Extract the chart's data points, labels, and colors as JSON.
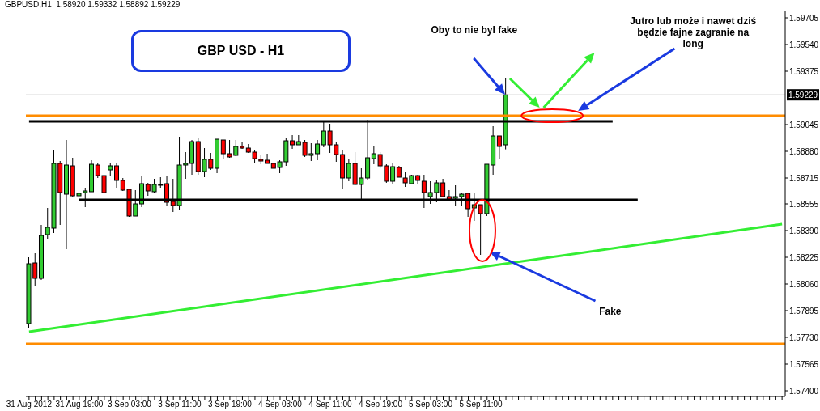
{
  "chart_data": {
    "type": "candlestick",
    "title": "GBPUSD,H1  1.58920 1.59332 1.58892 1.59229",
    "annotations": [
      "GBP USD - H1",
      "Oby to nie byl fake",
      "Jutro lub może i nawet dziś będzie fajne zagranie na long",
      "Fake"
    ],
    "categories": [
      "31 Aug 2012",
      null,
      null,
      null,
      null,
      null,
      null,
      null,
      "31 Aug 19:00",
      null,
      null,
      null,
      null,
      null,
      null,
      null,
      "3 Sep 03:00",
      null,
      null,
      null,
      null,
      null,
      null,
      null,
      "3 Sep 11:00",
      null,
      null,
      null,
      null,
      null,
      null,
      null,
      "3 Sep 19:00",
      null,
      null,
      null,
      null,
      null,
      null,
      null,
      "4 Sep 03:00",
      null,
      null,
      null,
      null,
      null,
      null,
      null,
      "4 Sep 11:00",
      null,
      null,
      null,
      null,
      null,
      null,
      null,
      "4 Sep 19:00",
      null,
      null,
      null,
      null,
      null,
      null,
      null,
      "5 Sep 03:00",
      null,
      null,
      null,
      null,
      null,
      null,
      null,
      "5 Sep 11:00",
      null,
      null,
      null,
      null,
      null,
      null,
      null,
      null,
      null,
      null,
      null,
      null,
      null,
      null,
      null,
      null,
      null,
      null,
      null,
      null,
      null,
      null,
      null,
      null,
      null,
      null,
      null,
      null,
      null,
      null,
      null,
      null,
      null,
      null,
      null,
      null,
      null,
      null,
      null,
      null,
      null,
      null,
      null,
      null,
      null,
      null,
      null,
      null
    ],
    "ohlc": [
      [
        1.57815,
        1.58225,
        1.5779,
        1.58185
      ],
      [
        1.5819,
        1.5825,
        1.5805,
        1.58095
      ],
      [
        1.58095,
        1.58425,
        1.58085,
        1.5836
      ],
      [
        1.58365,
        1.5853,
        1.58335,
        1.5841
      ],
      [
        1.58405,
        1.58885,
        1.58375,
        1.58805
      ],
      [
        1.58805,
        1.5882,
        1.58425,
        1.58625
      ],
      [
        1.58615,
        1.5895,
        1.58275,
        1.58795
      ],
      [
        1.5879,
        1.5884,
        1.586,
        1.58605
      ],
      [
        1.58605,
        1.5866,
        1.58525,
        1.5862
      ],
      [
        1.58625,
        1.58655,
        1.58535,
        1.58635
      ],
      [
        1.5863,
        1.58825,
        1.5863,
        1.588
      ],
      [
        1.58795,
        1.58805,
        1.58715,
        1.5873
      ],
      [
        1.5873,
        1.58765,
        1.5861,
        1.58625
      ],
      [
        1.58765,
        1.58805,
        1.5873,
        1.5879
      ],
      [
        1.5879,
        1.58805,
        1.58655,
        1.587
      ],
      [
        1.587,
        1.58715,
        1.58635,
        1.5864
      ],
      [
        1.58645,
        1.58645,
        1.58475,
        1.5848
      ],
      [
        1.5848,
        1.5864,
        1.5848,
        1.58555
      ],
      [
        1.58555,
        1.58725,
        1.58535,
        1.5868
      ],
      [
        1.58675,
        1.58685,
        1.58605,
        1.58635
      ],
      [
        1.5863,
        1.5871,
        1.5862,
        1.58675
      ],
      [
        1.58675,
        1.5872,
        1.58655,
        1.58675
      ],
      [
        1.5868,
        1.58725,
        1.5854,
        1.58565
      ],
      [
        1.5857,
        1.5871,
        1.58505,
        1.58545
      ],
      [
        1.58545,
        1.5897,
        1.5852,
        1.58795
      ],
      [
        1.58795,
        1.58875,
        1.5871,
        1.58805
      ],
      [
        1.58805,
        1.5895,
        1.58735,
        1.5894
      ],
      [
        1.5894,
        1.58965,
        1.58735,
        1.58755
      ],
      [
        1.58755,
        1.589,
        1.5872,
        1.5883
      ],
      [
        1.5883,
        1.5887,
        1.58765,
        1.58775
      ],
      [
        1.58775,
        1.58955,
        1.58745,
        1.58955
      ],
      [
        1.5895,
        1.5895,
        1.58835,
        1.58865
      ],
      [
        1.58865,
        1.5895,
        1.5884,
        1.58845
      ],
      [
        1.58855,
        1.5895,
        1.5885,
        1.5891
      ],
      [
        1.5891,
        1.5894,
        1.58895,
        1.589
      ],
      [
        1.589,
        1.58925,
        1.5887,
        1.58875
      ],
      [
        1.58875,
        1.5889,
        1.5881,
        1.58835
      ],
      [
        1.5883,
        1.5886,
        1.588,
        1.5882
      ],
      [
        1.58825,
        1.58865,
        1.58805,
        1.58805
      ],
      [
        1.58805,
        1.5881,
        1.58775,
        1.58775
      ],
      [
        1.5878,
        1.58825,
        1.58745,
        1.58815
      ],
      [
        1.58815,
        1.58965,
        1.5879,
        1.58945
      ],
      [
        1.58945,
        1.5898,
        1.58895,
        1.5892
      ],
      [
        1.5892,
        1.5898,
        1.5892,
        1.5894
      ],
      [
        1.58935,
        1.5895,
        1.58845,
        1.58855
      ],
      [
        1.58855,
        1.5893,
        1.5882,
        1.58865
      ],
      [
        1.58865,
        1.5895,
        1.58825,
        1.58925
      ],
      [
        1.5892,
        1.5907,
        1.58905,
        1.59005
      ],
      [
        1.59005,
        1.5905,
        1.5887,
        1.5892
      ],
      [
        1.5892,
        1.58935,
        1.58815,
        1.5886
      ],
      [
        1.5886,
        1.5889,
        1.58645,
        1.58715
      ],
      [
        1.58715,
        1.58835,
        1.58695,
        1.58805
      ],
      [
        1.58805,
        1.58875,
        1.5867,
        1.58675
      ],
      [
        1.58675,
        1.58775,
        1.5857,
        1.58715
      ],
      [
        1.58715,
        1.59075,
        1.587,
        1.5884
      ],
      [
        1.58835,
        1.5891,
        1.588,
        1.58865
      ],
      [
        1.5886,
        1.58875,
        1.58775,
        1.5879
      ],
      [
        1.5879,
        1.588,
        1.58685,
        1.58695
      ],
      [
        1.58695,
        1.5881,
        1.58675,
        1.58785
      ],
      [
        1.5878,
        1.5879,
        1.5872,
        1.5872
      ],
      [
        1.58715,
        1.5875,
        1.5866,
        1.58685
      ],
      [
        1.5868,
        1.58735,
        1.5868,
        1.5873
      ],
      [
        1.5873,
        1.58735,
        1.58675,
        1.587
      ],
      [
        1.58695,
        1.58735,
        1.5853,
        1.58625
      ],
      [
        1.586,
        1.58695,
        1.58555,
        1.58625
      ],
      [
        1.58625,
        1.58705,
        1.58565,
        1.58685
      ],
      [
        1.58685,
        1.5871,
        1.586,
        1.586
      ],
      [
        1.586,
        1.5864,
        1.58575,
        1.5858
      ],
      [
        1.5859,
        1.5867,
        1.58545,
        1.586
      ],
      [
        1.586,
        1.5862,
        1.58545,
        1.58615
      ],
      [
        1.5862,
        1.58625,
        1.58475,
        1.58525
      ],
      [
        1.5853,
        1.58625,
        1.5845,
        1.5855
      ],
      [
        1.5855,
        1.5855,
        1.5824,
        1.58495
      ],
      [
        1.58495,
        1.588,
        1.5848,
        1.588
      ],
      [
        1.58795,
        1.59035,
        1.58735,
        1.58975
      ],
      [
        1.58975,
        1.58975,
        1.5883,
        1.5891
      ],
      [
        1.5892,
        1.59332,
        1.58892,
        1.59229
      ],
      null,
      null,
      null,
      null,
      null,
      null,
      null,
      null,
      null,
      null,
      null,
      null,
      null,
      null,
      null,
      null,
      null,
      null,
      null,
      null,
      null,
      null,
      null,
      null,
      null,
      null,
      null,
      null,
      null,
      null,
      null,
      null,
      null,
      null,
      null,
      null,
      null,
      null,
      null,
      null,
      null,
      null,
      null,
      null
    ],
    "colors": [
      "#32cd32",
      "#ff0000",
      "#32cd32",
      "#32cd32",
      "#32cd32",
      "#ff0000",
      "#32cd32",
      "#ff0000",
      "#32cd32",
      "#32cd32",
      "#32cd32",
      "#ff0000",
      "#ff0000",
      "#32cd32",
      "#ff0000",
      "#ff0000",
      "#ff0000",
      "#32cd32",
      "#32cd32",
      "#ff0000",
      "#32cd32",
      "#32cd32",
      "#ff0000",
      "#ff0000",
      "#32cd32",
      "#32cd32",
      "#32cd32",
      "#ff0000",
      "#32cd32",
      "#ff0000",
      "#32cd32",
      "#ff0000",
      "#ff0000",
      "#32cd32",
      "#ff0000",
      "#ff0000",
      "#ff0000",
      "#ff0000",
      "#ff0000",
      "#ff0000",
      "#32cd32",
      "#32cd32",
      "#ff0000",
      "#32cd32",
      "#ff0000",
      "#32cd32",
      "#32cd32",
      "#32cd32",
      "#ff0000",
      "#ff0000",
      "#ff0000",
      "#32cd32",
      "#ff0000",
      "#32cd32",
      "#32cd32",
      "#32cd32",
      "#ff0000",
      "#ff0000",
      "#32cd32",
      "#ff0000",
      "#ff0000",
      "#32cd32",
      "#ff0000",
      "#ff0000",
      "#32cd32",
      "#32cd32",
      "#ff0000",
      "#ff0000",
      "#32cd32",
      "#32cd32",
      "#ff0000",
      "#32cd32",
      "#ff0000",
      "#32cd32",
      "#32cd32",
      "#ff0000",
      "#32cd32",
      null,
      null,
      null,
      null,
      null,
      null,
      null,
      null,
      null,
      null,
      null,
      null,
      null,
      null,
      null,
      null,
      null,
      null,
      null,
      null,
      null,
      null,
      null,
      null,
      null,
      null,
      null,
      null,
      null,
      null,
      null,
      null,
      null,
      null,
      null,
      null,
      null,
      null,
      null,
      null,
      null,
      null,
      null,
      null
    ],
    "series": [
      {
        "type": "line",
        "color": "#33ee33",
        "values": [
          1.57765,
          null,
          null,
          null,
          null,
          null,
          null,
          null,
          null,
          null,
          null,
          null,
          null,
          null,
          null,
          null,
          null,
          null,
          null,
          null,
          null,
          null,
          null,
          null,
          null,
          null,
          null,
          null,
          null,
          null,
          null,
          null,
          null,
          null,
          null,
          null,
          null,
          null,
          null,
          null,
          null,
          null,
          null,
          null,
          null,
          null,
          null,
          null,
          null,
          null,
          null,
          null,
          null,
          null,
          null,
          null,
          null,
          null,
          null,
          null,
          null,
          null,
          null,
          null,
          null,
          null,
          null,
          null,
          null,
          null,
          null,
          null,
          null,
          null,
          null,
          null,
          null,
          null,
          null,
          null,
          null,
          null,
          null,
          null,
          null,
          null,
          null,
          null,
          null,
          null,
          null,
          null,
          null,
          null,
          null,
          null,
          null,
          null,
          null,
          null,
          null,
          null,
          null,
          null,
          null,
          null,
          null,
          null,
          null,
          null,
          null,
          null,
          null,
          null,
          null,
          null,
          null,
          null,
          null,
          null,
          1.5843
        ]
      },
      {
        "type": "line",
        "color": "#000000",
        "values": [
          1.59065,
          null,
          null,
          null,
          null,
          null,
          null,
          null,
          null,
          null,
          null,
          null,
          null,
          null,
          null,
          null,
          null,
          null,
          null,
          null,
          null,
          null,
          null,
          null,
          null,
          null,
          null,
          null,
          null,
          null,
          null,
          null,
          null,
          null,
          null,
          null,
          null,
          null,
          null,
          null,
          null,
          null,
          null,
          null,
          null,
          null,
          null,
          null,
          null,
          null,
          null,
          null,
          null,
          null,
          null,
          null,
          null,
          null,
          null,
          null,
          null,
          null,
          null,
          null,
          null,
          null,
          null,
          null,
          null,
          null,
          null,
          null,
          null,
          null,
          null,
          null,
          null,
          null,
          null,
          null,
          null,
          null,
          null,
          null,
          null,
          null,
          null,
          null,
          null,
          null,
          null,
          null,
          null,
          1.59065,
          null,
          null,
          null,
          null,
          null,
          null,
          null,
          null,
          null,
          null,
          null,
          null,
          null,
          null,
          null,
          null,
          null,
          null,
          null,
          null,
          null,
          null,
          null,
          null,
          null,
          null,
          null
        ]
      },
      {
        "type": "line",
        "color": "#000000",
        "values": [
          null,
          null,
          null,
          null,
          null,
          null,
          null,
          null,
          1.5858,
          null,
          null,
          null,
          null,
          null,
          null,
          null,
          null,
          null,
          null,
          null,
          null,
          null,
          null,
          null,
          null,
          null,
          null,
          null,
          null,
          null,
          null,
          null,
          null,
          null,
          null,
          null,
          null,
          null,
          null,
          null,
          null,
          null,
          null,
          null,
          null,
          null,
          null,
          null,
          null,
          null,
          null,
          null,
          null,
          null,
          null,
          null,
          null,
          null,
          null,
          null,
          null,
          null,
          null,
          null,
          null,
          null,
          null,
          null,
          null,
          null,
          null,
          null,
          null,
          null,
          null,
          null,
          null,
          null,
          null,
          null,
          null,
          null,
          null,
          null,
          null,
          null,
          null,
          null,
          null,
          null,
          null,
          null,
          null,
          null,
          null,
          null,
          null,
          1.5858,
          null,
          null,
          null,
          null,
          null,
          null,
          null,
          null,
          null,
          null,
          null,
          null,
          null,
          null,
          null,
          null,
          null,
          null,
          null,
          null,
          null,
          null,
          null
        ]
      }
    ],
    "ref_lines": [
      {
        "axis": "y",
        "value": 1.591,
        "color": "#ff8c00"
      },
      {
        "axis": "y",
        "value": 1.5769,
        "color": "#ff8c00"
      },
      {
        "axis": "y",
        "value": 1.59229,
        "color": "#c0c0c0",
        "label": "1.59229"
      }
    ],
    "ylim": [
      1.57365,
      1.5975
    ],
    "yticks": [
      {
        "value": 1.59705,
        "label": "1.59705"
      },
      {
        "value": 1.5954,
        "label": "1.59540"
      },
      {
        "value": 1.59375,
        "label": "1.59375"
      },
      {
        "value": 1.59045,
        "label": "1.59045"
      },
      {
        "value": 1.5888,
        "label": "1.58880"
      },
      {
        "value": 1.58715,
        "label": "1.58715"
      },
      {
        "value": 1.58555,
        "label": "1.58555"
      },
      {
        "value": 1.5839,
        "label": "1.58390"
      },
      {
        "value": 1.58225,
        "label": "1.58225"
      },
      {
        "value": 1.5806,
        "label": "1.58060"
      },
      {
        "value": 1.57895,
        "label": "1.57895"
      },
      {
        "value": 1.5773,
        "label": "1.57730"
      },
      {
        "value": 1.57565,
        "label": "1.57565"
      },
      {
        "value": 1.574,
        "label": "1.57400"
      }
    ]
  }
}
